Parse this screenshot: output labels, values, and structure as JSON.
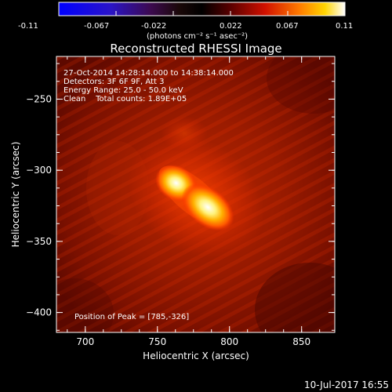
{
  "colorbar": {
    "ticks": [
      "-0.11",
      "-0.067",
      "-0.022",
      "0.022",
      "0.067",
      "0.11"
    ],
    "units": "(photons cm⁻² s⁻¹ asec⁻²)"
  },
  "title": "Reconstructed RHESSI Image",
  "info": {
    "line1": "27-Oct-2014 14:28:14.000 to 14:38:14.000",
    "line2": "Detectors: 3F 6F 9F, Att 3",
    "line3": "Energy Range: 25.0 - 50.0 keV",
    "line4": "Clean    Total counts: 1.89E+05"
  },
  "peak_label": "Position of Peak = [785,-326]",
  "timestamp": "10-Jul-2017 16:55",
  "chart_data": {
    "type": "heatmap",
    "title": "Reconstructed RHESSI Image",
    "xlabel": "Heliocentric X (arcsec)",
    "ylabel": "Heliocentric Y (arcsec)",
    "xlim": [
      680,
      873
    ],
    "ylim": [
      -414,
      -220
    ],
    "x_ticks": [
      700,
      750,
      800,
      850
    ],
    "y_ticks": [
      -250,
      -300,
      -350,
      -400
    ],
    "colorbar_range": [
      -0.11,
      0.11
    ],
    "colormap": "hot",
    "sources": [
      {
        "x": 763,
        "y": -309
      },
      {
        "x": 785,
        "y": -326
      }
    ],
    "peak": [
      785,
      -326
    ]
  },
  "colors": {
    "background": "#000000",
    "text": "#ffffff"
  }
}
